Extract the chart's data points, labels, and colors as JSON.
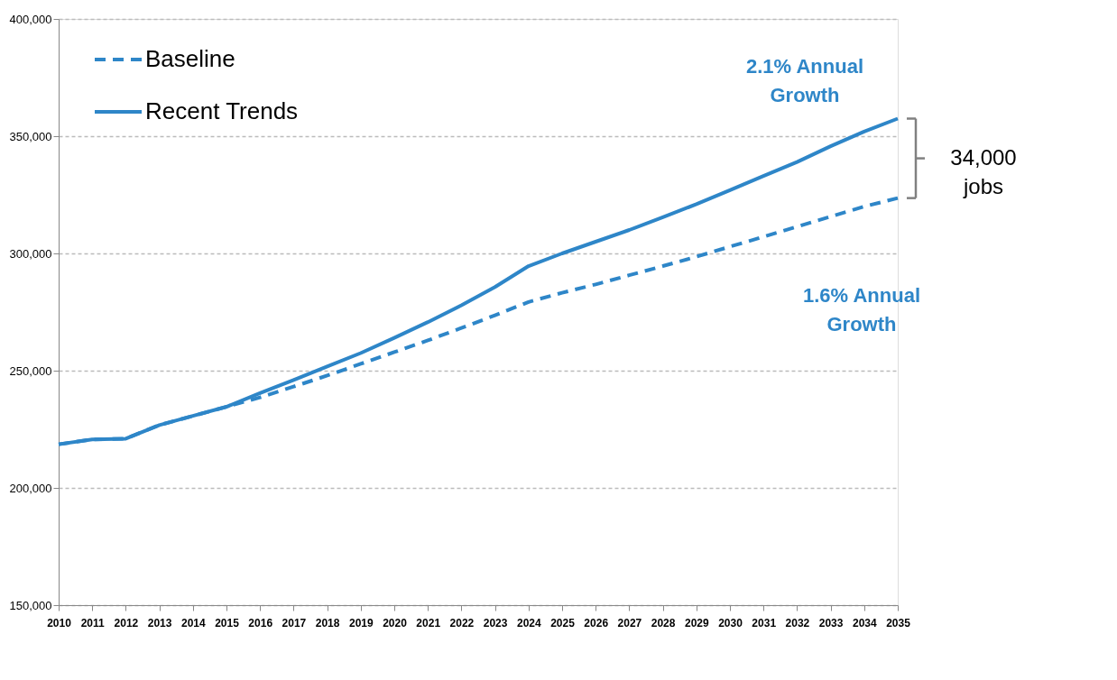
{
  "chart_data": {
    "type": "line",
    "x": [
      2010,
      2011,
      2012,
      2013,
      2014,
      2015,
      2016,
      2017,
      2018,
      2019,
      2020,
      2021,
      2022,
      2023,
      2024,
      2025,
      2026,
      2027,
      2028,
      2029,
      2030,
      2031,
      2032,
      2033,
      2034,
      2035
    ],
    "series": [
      {
        "name": "Baseline",
        "color": "#2e86c8",
        "line_style": "dashed",
        "values": [
          218600,
          220700,
          221000,
          226800,
          230700,
          234600,
          238600,
          243200,
          247900,
          252900,
          257900,
          262900,
          268200,
          273600,
          279300,
          283200,
          286800,
          290700,
          294600,
          298600,
          302900,
          307100,
          311400,
          315700,
          320000,
          323600
        ]
      },
      {
        "name": "Recent Trends",
        "color": "#2e86c8",
        "line_style": "solid",
        "values": [
          218600,
          220700,
          221000,
          226800,
          230700,
          234600,
          240400,
          246000,
          251800,
          257500,
          264000,
          270700,
          277900,
          285700,
          294600,
          300000,
          305000,
          310000,
          315400,
          321000,
          327000,
          333000,
          339000,
          345700,
          352000,
          357500
        ]
      }
    ],
    "xlim": [
      2010,
      2035
    ],
    "xticks": [
      2010,
      2011,
      2012,
      2013,
      2014,
      2015,
      2016,
      2017,
      2018,
      2019,
      2020,
      2021,
      2022,
      2023,
      2024,
      2025,
      2026,
      2027,
      2028,
      2029,
      2030,
      2031,
      2032,
      2033,
      2034,
      2035
    ],
    "ylim": [
      150000,
      400000
    ],
    "yticks": [
      {
        "value": 150000,
        "label": "150,000"
      },
      {
        "value": 200000,
        "label": "200,000"
      },
      {
        "value": 250000,
        "label": "250,000"
      },
      {
        "value": 300000,
        "label": "300,000"
      },
      {
        "value": 350000,
        "label": "350,000"
      },
      {
        "value": 400000,
        "label": "400,000"
      }
    ],
    "grid": "y",
    "legend": "top left",
    "marker": "none",
    "annotations": [
      "2.1% Annual\nGrowth",
      "1.6% Annual\nGrowth",
      "34,000\njobs"
    ]
  }
}
